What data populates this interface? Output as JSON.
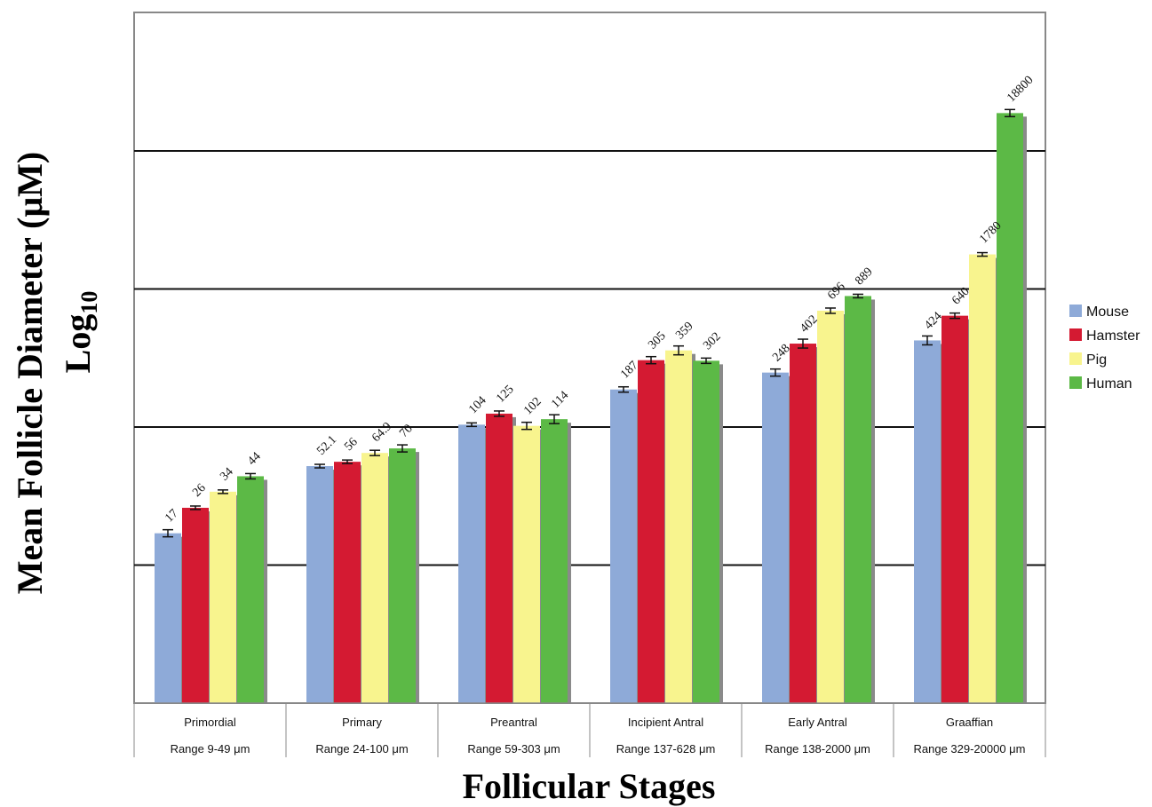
{
  "chart_data": {
    "type": "bar",
    "title": "",
    "ylabel": "Mean Follicle Diameter (μM)",
    "ylabel_scale": "Log",
    "ylabel_scale_sub": "10",
    "xlabel": "Follicular Stages",
    "y_scale": "log",
    "ylim": [
      1,
      100000
    ],
    "grid": true,
    "legend_position": "right",
    "categories": [
      "Primordial",
      "Primary",
      "Preantral",
      "Incipient Antral",
      "Early Antral",
      "Graaffian"
    ],
    "ranges": [
      "Range 9-49 μm",
      "Range 24-100 μm",
      "Range 59-303 μm",
      "Range 137-628 μm",
      "Range 138-2000 μm",
      "Range 329-20000 μm"
    ],
    "series": [
      {
        "name": "Mouse",
        "color": "#8eaad8",
        "values": [
          17,
          52.1,
          104,
          187,
          248,
          424
        ],
        "labels": [
          "17",
          "52.1",
          "104",
          "187",
          "248",
          "424"
        ]
      },
      {
        "name": "Hamster",
        "color": "#d41a32",
        "values": [
          26,
          56,
          125,
          305,
          402,
          640
        ],
        "labels": [
          "26",
          "56",
          "125",
          "305",
          "402",
          "640"
        ]
      },
      {
        "name": "Pig",
        "color": "#f8f48e",
        "values": [
          34,
          64.9,
          102,
          359,
          696,
          1780
        ],
        "labels": [
          "34",
          "64.9",
          "102",
          "359",
          "696",
          "1780"
        ]
      },
      {
        "name": "Human",
        "color": "#5cb946",
        "values": [
          44,
          70,
          114,
          302,
          889,
          18800
        ],
        "labels": [
          "44",
          "70",
          "114",
          "302",
          "889",
          "18800"
        ]
      }
    ]
  }
}
